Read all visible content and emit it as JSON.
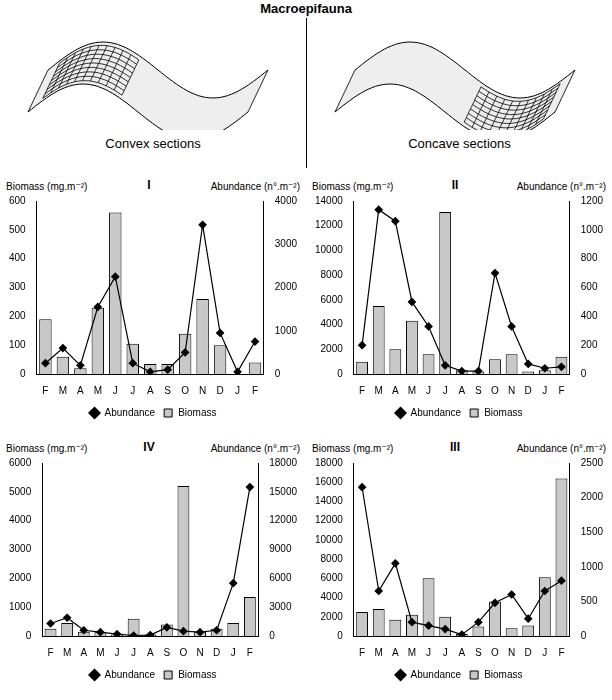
{
  "title": "Macroepifauna",
  "sections": [
    "Convex sections",
    "Concave sections"
  ],
  "chart_data": [
    {
      "type": "bar",
      "title": "I",
      "categories": [
        "F",
        "M",
        "A",
        "M",
        "J",
        "J",
        "A",
        "S",
        "O",
        "N",
        "D",
        "J",
        "F"
      ],
      "y_label": "Biomass (mg.m⁻²)",
      "y2_label": "Abundance (n°.m⁻²)",
      "ylim": [
        0,
        600
      ],
      "yticks": [
        0,
        100,
        200,
        300,
        400,
        500,
        600
      ],
      "y2lim": [
        0,
        4000
      ],
      "y2ticks": [
        0,
        1000,
        2000,
        3000,
        4000
      ],
      "grid": false,
      "legend": "bottom",
      "series": [
        {
          "name": "Biomass",
          "type": "bar",
          "color": "#c8c8c8",
          "values": [
            190,
            60,
            20,
            230,
            560,
            105,
            35,
            35,
            140,
            260,
            100,
            0,
            40
          ]
        },
        {
          "name": "Abundance",
          "type": "line",
          "color": "#000000",
          "marker": "diamond",
          "line_style": "solid",
          "axis": "y2",
          "values": [
            250,
            600,
            200,
            1550,
            2250,
            250,
            50,
            100,
            500,
            3450,
            950,
            50,
            750
          ]
        }
      ]
    },
    {
      "type": "bar",
      "title": "II",
      "categories": [
        "F",
        "M",
        "A",
        "M",
        "J",
        "J",
        "A",
        "S",
        "O",
        "N",
        "D",
        "J",
        "F"
      ],
      "y_label": "Biomass (mg.m⁻²)",
      "y2_label": "Abundance (n°.m⁻²)",
      "ylim": [
        0,
        14000
      ],
      "yticks": [
        0,
        2000,
        4000,
        6000,
        8000,
        10000,
        12000,
        14000
      ],
      "y2lim": [
        0,
        1200
      ],
      "y2ticks": [
        0,
        200,
        400,
        600,
        800,
        1000,
        1200
      ],
      "grid": false,
      "legend": "bottom",
      "series": [
        {
          "name": "Biomass",
          "type": "bar",
          "color": "#c8c8c8",
          "values": [
            1000,
            5500,
            2000,
            4300,
            1600,
            13100,
            300,
            200,
            1200,
            1600,
            200,
            300,
            1400
          ]
        },
        {
          "name": "Abundance",
          "type": "line",
          "color": "#000000",
          "marker": "diamond",
          "line_style": "solid",
          "axis": "y2",
          "values": [
            200,
            1140,
            1060,
            500,
            330,
            60,
            20,
            20,
            700,
            330,
            70,
            40,
            50
          ]
        }
      ]
    },
    {
      "type": "bar",
      "title": "IV",
      "categories": [
        "F",
        "M",
        "A",
        "M",
        "J",
        "J",
        "A",
        "S",
        "O",
        "N",
        "D",
        "J",
        "F"
      ],
      "y_label": "Biomass (mg.m⁻²)",
      "y2_label": "Abundance (n°.m⁻²)",
      "ylim": [
        0,
        6000
      ],
      "yticks": [
        0,
        1000,
        2000,
        3000,
        4000,
        5000,
        6000
      ],
      "y2lim": [
        0,
        18000
      ],
      "y2ticks": [
        0,
        3000,
        6000,
        9000,
        12000,
        15000,
        18000
      ],
      "grid": false,
      "legend": "bottom",
      "series": [
        {
          "name": "Biomass",
          "type": "bar",
          "color": "#c8c8c8",
          "values": [
            250,
            450,
            150,
            150,
            50,
            600,
            50,
            400,
            5200,
            150,
            250,
            450,
            1350
          ]
        },
        {
          "name": "Abundance",
          "type": "line",
          "color": "#000000",
          "marker": "diamond",
          "line_style": "solid",
          "axis": "y2",
          "values": [
            1300,
            1900,
            600,
            400,
            200,
            50,
            100,
            900,
            500,
            400,
            600,
            5500,
            15500
          ]
        }
      ]
    },
    {
      "type": "bar",
      "title": "III",
      "categories": [
        "F",
        "M",
        "A",
        "M",
        "J",
        "J",
        "A",
        "S",
        "O",
        "N",
        "D",
        "J",
        "F"
      ],
      "y_label": "Biomass (mg.m⁻²)",
      "y2_label": "Abundance (n°.m⁻²)",
      "ylim": [
        0,
        18000
      ],
      "yticks": [
        0,
        2000,
        4000,
        6000,
        8000,
        10000,
        12000,
        14000,
        16000,
        18000
      ],
      "y2lim": [
        0,
        2500
      ],
      "y2ticks": [
        0,
        500,
        1000,
        1500,
        2000,
        2500
      ],
      "grid": false,
      "legend": "bottom",
      "series": [
        {
          "name": "Biomass",
          "type": "bar",
          "color": "#c8c8c8",
          "values": [
            2500,
            2800,
            1700,
            2200,
            6000,
            2000,
            200,
            1000,
            3600,
            800,
            1100,
            6100,
            16400
          ]
        },
        {
          "name": "Abundance",
          "type": "line",
          "color": "#000000",
          "marker": "diamond",
          "line_style": "solid",
          "axis": "y2",
          "values": [
            2150,
            650,
            1050,
            200,
            150,
            100,
            20,
            200,
            480,
            600,
            250,
            650,
            800
          ]
        }
      ]
    }
  ]
}
